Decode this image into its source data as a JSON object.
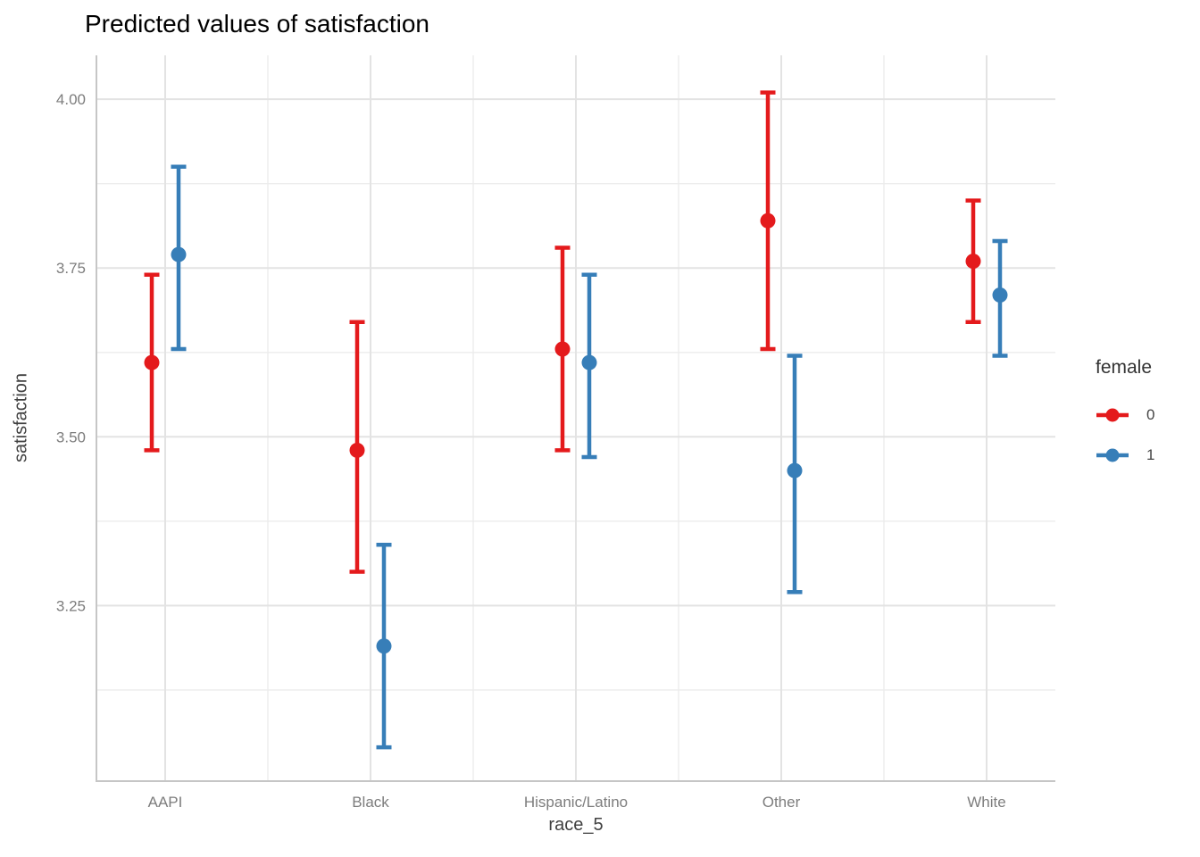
{
  "chart_data": {
    "type": "scatter",
    "subtype": "pointrange-with-error-bars",
    "title": "Predicted values of satisfaction",
    "xlabel": "race_5",
    "ylabel": "satisfaction",
    "categories": [
      "AAPI",
      "Black",
      "Hispanic/Latino",
      "Other",
      "White"
    ],
    "series": [
      {
        "name": "0",
        "color": "#E41A1C",
        "values": [
          3.61,
          3.48,
          3.63,
          3.82,
          3.76
        ],
        "ci_low": [
          3.48,
          3.3,
          3.48,
          3.63,
          3.67
        ],
        "ci_high": [
          3.74,
          3.67,
          3.78,
          4.01,
          3.85
        ]
      },
      {
        "name": "1",
        "color": "#377EB8",
        "values": [
          3.77,
          3.19,
          3.61,
          3.45,
          3.71
        ],
        "ci_low": [
          3.63,
          3.04,
          3.47,
          3.27,
          3.62
        ],
        "ci_high": [
          3.9,
          3.34,
          3.74,
          3.62,
          3.79
        ]
      }
    ],
    "legend": {
      "title": "female",
      "position": "right",
      "entries": [
        "0",
        "1"
      ]
    },
    "y_ticks": [
      {
        "label": "4.00",
        "value": 4.0
      },
      {
        "label": "3.75",
        "value": 3.75
      },
      {
        "label": "3.50",
        "value": 3.5
      },
      {
        "label": "3.25",
        "value": 3.25
      }
    ],
    "y_minor_gridlines": [
      3.875,
      3.625,
      3.375,
      3.125
    ],
    "ylim": [
      2.99,
      4.065
    ],
    "grid": "on",
    "colors": {
      "grid_major": "#e3e3e3",
      "grid_minor": "#ececec",
      "axis_line": "#c6c6c6",
      "tick_text": "#7d7d7d"
    }
  }
}
